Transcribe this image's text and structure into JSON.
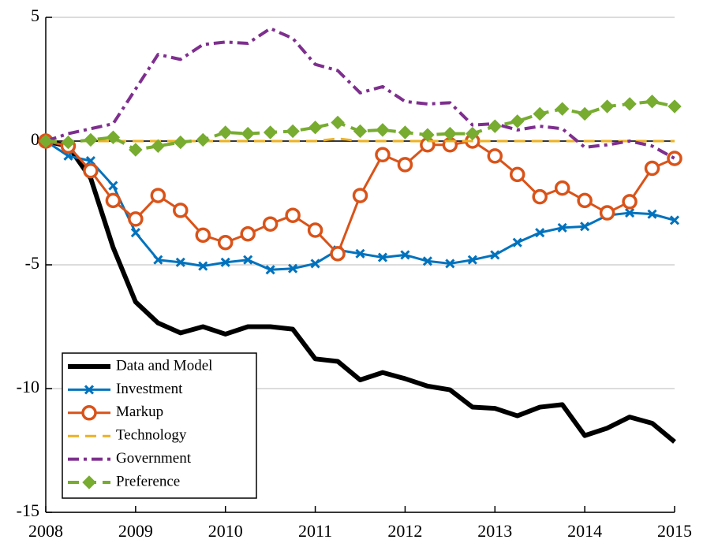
{
  "chart_data": {
    "type": "line",
    "x": [
      2008,
      2008.25,
      2008.5,
      2008.75,
      2009,
      2009.25,
      2009.5,
      2009.75,
      2010,
      2010.25,
      2010.5,
      2010.75,
      2011,
      2011.25,
      2011.5,
      2011.75,
      2012,
      2012.25,
      2012.5,
      2012.75,
      2013,
      2013.25,
      2013.5,
      2013.75,
      2014,
      2014.25,
      2014.5,
      2014.75,
      2015
    ],
    "xlim": [
      2008,
      2015
    ],
    "xticks": [
      2008,
      2009,
      2010,
      2011,
      2012,
      2013,
      2014,
      2015
    ],
    "ylim": [
      -15,
      5
    ],
    "yticks": [
      -15,
      -10,
      -5,
      0,
      5
    ],
    "grid": true,
    "zero_line": true,
    "legend": "lower left",
    "series": [
      {
        "name": "Data and Model",
        "color": "#000000",
        "line_style": "solid",
        "line_width": 6,
        "values": [
          0,
          -0.2,
          -1.5,
          -4.3,
          -6.5,
          -7.35,
          -7.75,
          -7.5,
          -7.8,
          -7.5,
          -7.5,
          -7.6,
          -8.8,
          -8.9,
          -9.65,
          -9.35,
          -9.6,
          -9.9,
          -10.05,
          -10.75,
          -10.8,
          -11.1,
          -10.75,
          -10.65,
          -11.9,
          -11.6,
          -11.15,
          -11.4,
          -12.15
        ]
      },
      {
        "name": "Investment",
        "color": "#0072BD",
        "line_style": "solid",
        "line_width": 3,
        "marker": "x",
        "values": [
          0,
          -0.6,
          -0.8,
          -1.8,
          -3.7,
          -4.8,
          -4.9,
          -5.05,
          -4.9,
          -4.8,
          -5.2,
          -5.15,
          -4.95,
          -4.4,
          -4.55,
          -4.7,
          -4.6,
          -4.85,
          -4.95,
          -4.8,
          -4.6,
          -4.1,
          -3.7,
          -3.5,
          -3.45,
          -3.0,
          -2.9,
          -2.95,
          -3.2
        ]
      },
      {
        "name": "Markup",
        "color": "#D95319",
        "line_style": "solid",
        "line_width": 3,
        "marker": "o",
        "values": [
          0,
          -0.2,
          -1.2,
          -2.4,
          -3.15,
          -2.2,
          -2.8,
          -3.8,
          -4.1,
          -3.75,
          -3.35,
          -3.0,
          -3.6,
          -4.55,
          -2.2,
          -0.55,
          -0.95,
          -0.15,
          -0.15,
          0.0,
          -0.6,
          -1.35,
          -2.25,
          -1.9,
          -2.4,
          -2.9,
          -2.45,
          -1.1,
          -0.7
        ]
      },
      {
        "name": "Technology",
        "color": "#EDB120",
        "line_style": "dashed",
        "line_width": 3,
        "values": [
          0,
          0,
          0,
          0,
          0,
          0,
          0,
          0,
          0,
          0,
          0,
          0,
          0,
          0.1,
          0,
          0,
          0,
          0,
          0,
          0,
          0,
          0,
          0,
          0,
          0,
          0,
          0,
          0,
          0
        ]
      },
      {
        "name": "Government",
        "color": "#7E2F8E",
        "line_style": "dashdot",
        "line_width": 4,
        "values": [
          0,
          0.3,
          0.5,
          0.7,
          2.1,
          3.5,
          3.3,
          3.9,
          4.0,
          3.95,
          4.55,
          4.15,
          3.1,
          2.85,
          1.95,
          2.2,
          1.6,
          1.5,
          1.55,
          0.65,
          0.7,
          0.45,
          0.6,
          0.5,
          -0.25,
          -0.15,
          0.0,
          -0.2,
          -0.7
        ]
      },
      {
        "name": "Preference",
        "color": "#77AC30",
        "line_style": "dashed",
        "line_width": 4,
        "marker": "diamond",
        "values": [
          0,
          -0.05,
          0.05,
          0.15,
          -0.35,
          -0.2,
          -0.05,
          0.05,
          0.35,
          0.3,
          0.35,
          0.4,
          0.55,
          0.75,
          0.4,
          0.45,
          0.35,
          0.25,
          0.3,
          0.3,
          0.6,
          0.8,
          1.1,
          1.3,
          1.1,
          1.4,
          1.5,
          1.6,
          1.4
        ]
      }
    ]
  }
}
